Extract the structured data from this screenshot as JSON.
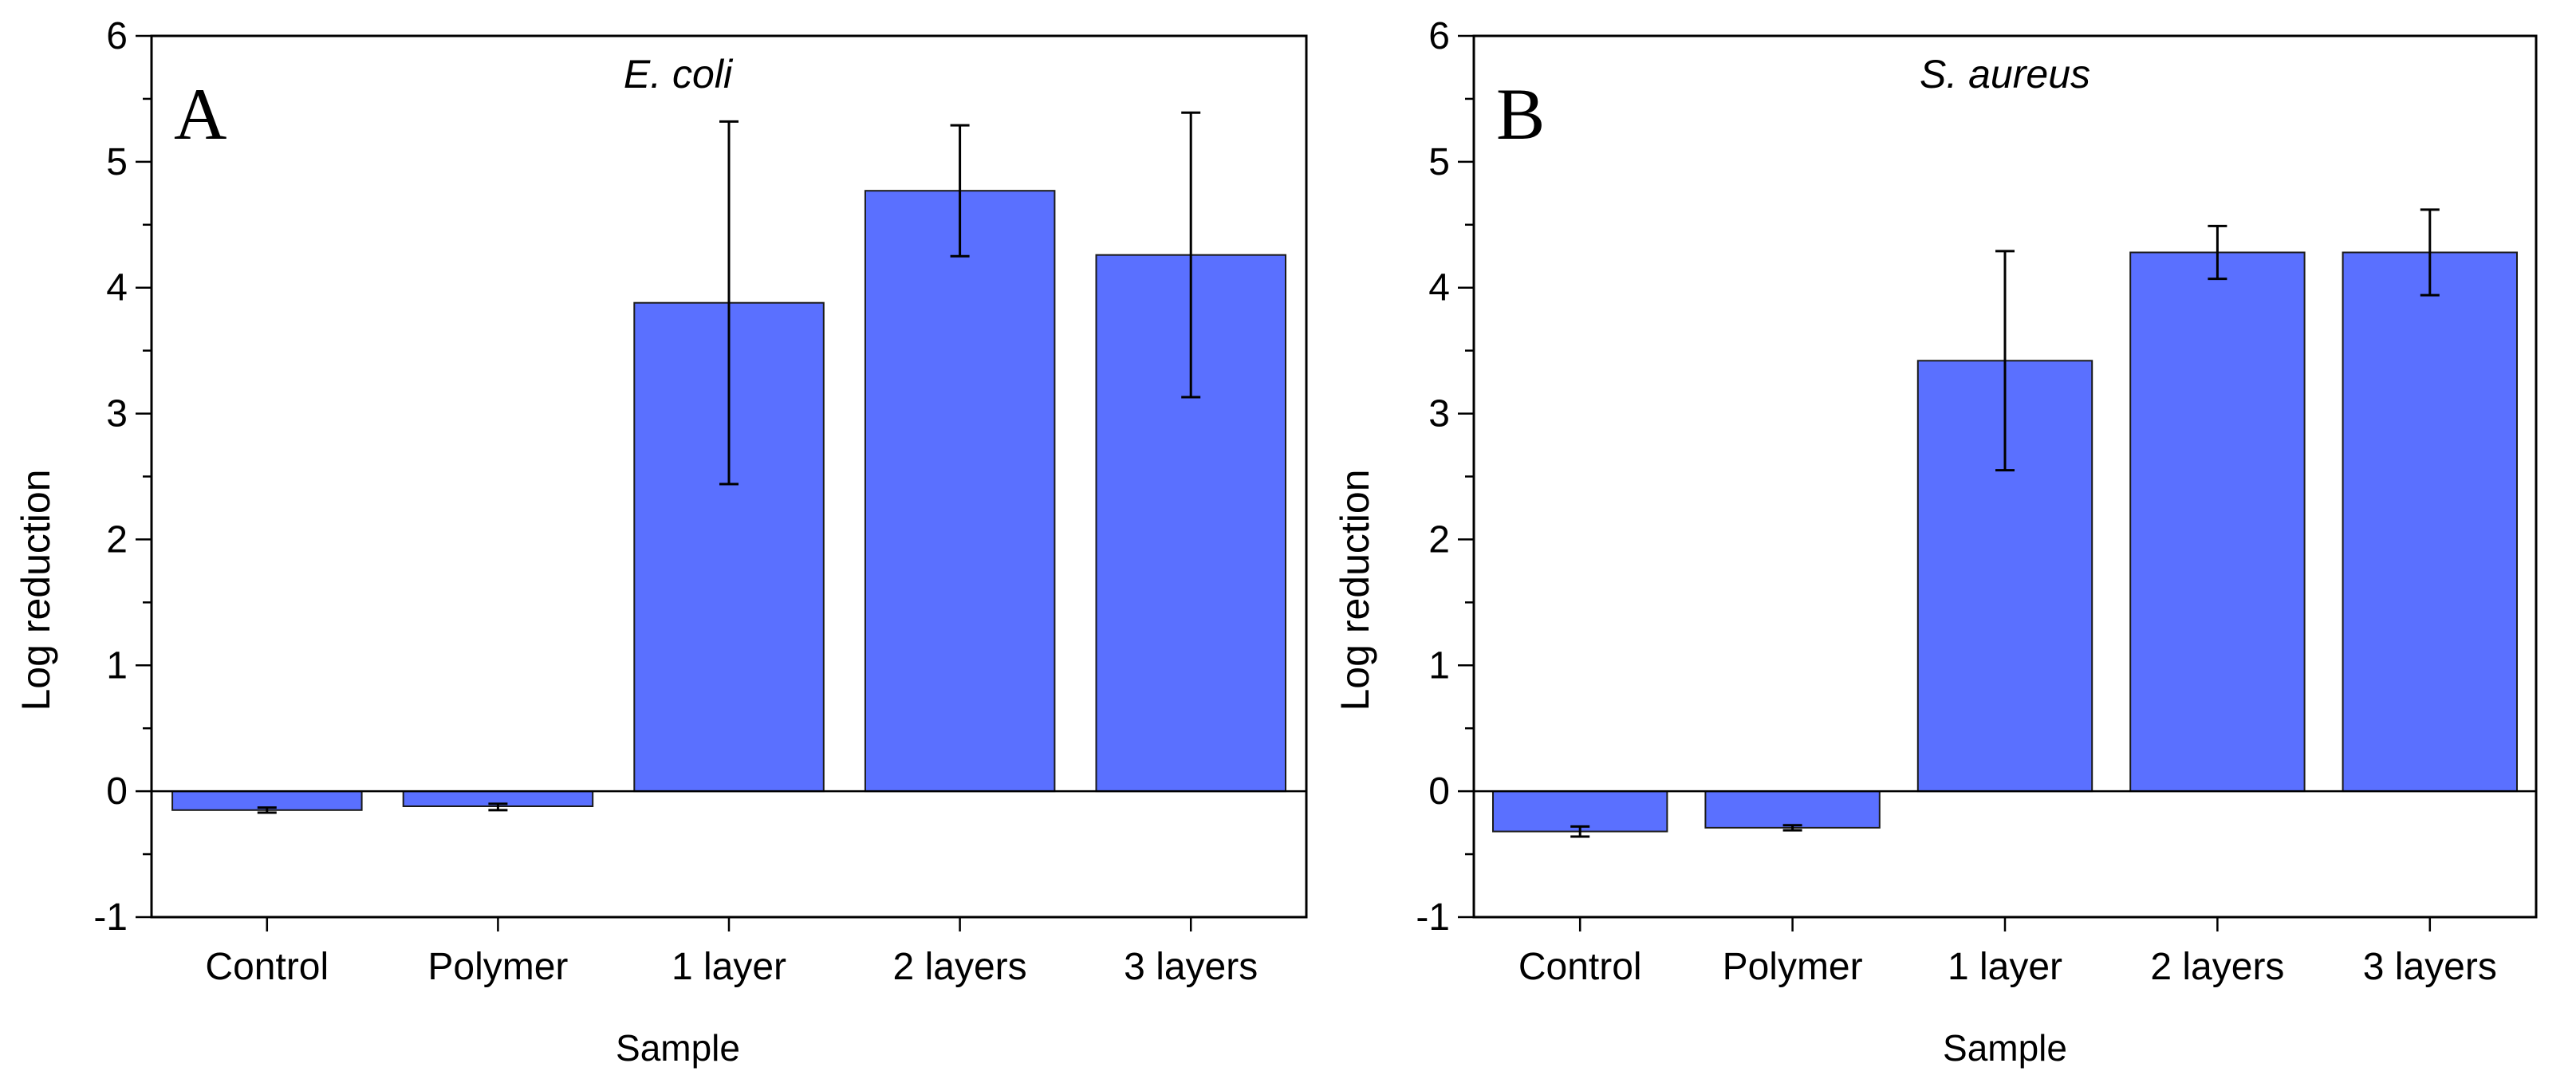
{
  "figure": {
    "bar_color": "#5a70ff",
    "bar_stroke": "#1a1a1a"
  },
  "chart_data": [
    {
      "type": "bar",
      "panel_label": "A",
      "title": "E. coli",
      "xlabel": "Sample",
      "ylabel": "Log reduction",
      "categories": [
        "Control",
        "Polymer",
        "1 layer",
        "2 layers",
        "3 layers"
      ],
      "values": [
        -0.15,
        -0.12,
        3.88,
        4.77,
        4.26
      ],
      "error_low": [
        -0.17,
        -0.15,
        2.44,
        4.25,
        3.13
      ],
      "error_high": [
        -0.13,
        -0.1,
        5.32,
        5.29,
        5.39
      ],
      "ylim": [
        -1,
        6
      ],
      "yticks": [
        "-1",
        "0",
        "1",
        "2",
        "3",
        "4",
        "5",
        "6"
      ],
      "grid": false
    },
    {
      "type": "bar",
      "panel_label": "B",
      "title": "S. aureus",
      "xlabel": "Sample",
      "ylabel": "Log reduction",
      "categories": [
        "Control",
        "Polymer",
        "1 layer",
        "2 layers",
        "3 layers"
      ],
      "values": [
        -0.32,
        -0.29,
        3.42,
        4.28,
        4.28
      ],
      "error_low": [
        -0.36,
        -0.31,
        2.55,
        4.07,
        3.94
      ],
      "error_high": [
        -0.28,
        -0.27,
        4.29,
        4.49,
        4.62
      ],
      "ylim": [
        -1,
        6
      ],
      "yticks": [
        "-1",
        "0",
        "1",
        "2",
        "3",
        "4",
        "5",
        "6"
      ],
      "grid": false
    }
  ]
}
